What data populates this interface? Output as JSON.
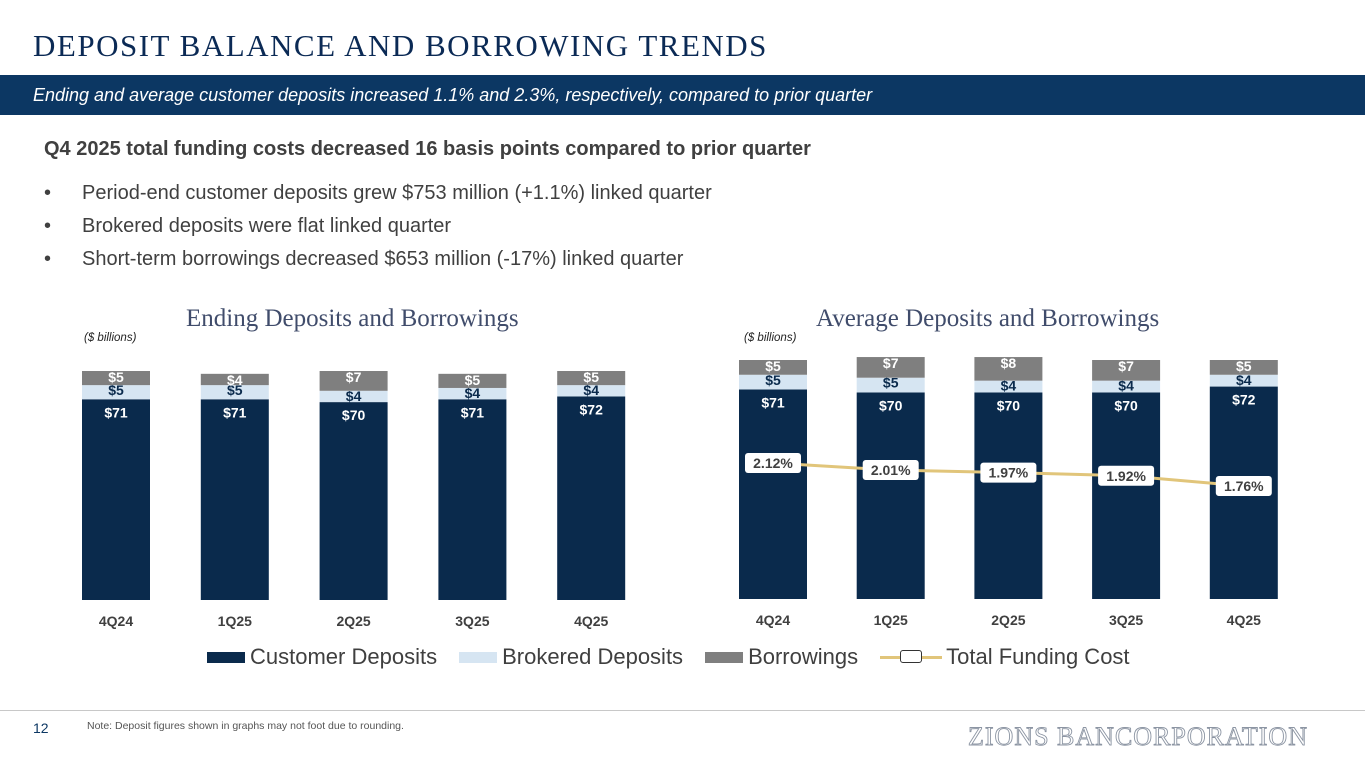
{
  "title": "DEPOSIT BALANCE AND BORROWING TRENDS",
  "banner": "Ending and average customer deposits increased 1.1% and 2.3%, respectively, compared to prior quarter",
  "headline": "Q4 2025 total funding costs decreased 16 basis points compared to prior quarter",
  "bullets": [
    "Period-end customer deposits grew $753 million (+1.1%) linked quarter",
    "Brokered deposits were flat linked quarter",
    "Short-term borrowings decreased $653 million (-17%) linked quarter"
  ],
  "bullet_glyph": "•",
  "colors": {
    "customer": "#0a2a4c",
    "brokered": "#d6e5f2",
    "borrowings": "#7f7f7f",
    "funding_line": "#e1c57a"
  },
  "chart_data": [
    {
      "type": "bar",
      "stacked": true,
      "title": "Ending Deposits and Borrowings",
      "units": "($ billions)",
      "categories": [
        "4Q24",
        "1Q25",
        "2Q25",
        "3Q25",
        "4Q25"
      ],
      "series": [
        {
          "name": "Customer Deposits",
          "values": [
            71,
            71,
            70,
            71,
            72
          ],
          "labels": [
            "$71",
            "$71",
            "$70",
            "$71",
            "$72"
          ]
        },
        {
          "name": "Brokered Deposits",
          "values": [
            5,
            5,
            4,
            4,
            4
          ],
          "labels": [
            "$5",
            "$5",
            "$4",
            "$4",
            "$4"
          ]
        },
        {
          "name": "Borrowings",
          "values": [
            5,
            4,
            7,
            5,
            5
          ],
          "labels": [
            "$5",
            "$4",
            "$7",
            "$5",
            "$5"
          ]
        }
      ],
      "ylim": [
        0,
        81
      ]
    },
    {
      "type": "bar",
      "stacked": true,
      "title": "Average Deposits and Borrowings",
      "units": "($ billions)",
      "categories": [
        "4Q24",
        "1Q25",
        "2Q25",
        "3Q25",
        "4Q25"
      ],
      "series": [
        {
          "name": "Customer Deposits",
          "values": [
            71,
            70,
            70,
            70,
            72
          ],
          "labels": [
            "$71",
            "$70",
            "$70",
            "$70",
            "$72"
          ]
        },
        {
          "name": "Brokered Deposits",
          "values": [
            5,
            5,
            4,
            4,
            4
          ],
          "labels": [
            "$5",
            "$5",
            "$4",
            "$4",
            "$4"
          ]
        },
        {
          "name": "Borrowings",
          "values": [
            5,
            7,
            8,
            7,
            5
          ],
          "labels": [
            "$5",
            "$7",
            "$8",
            "$7",
            "$5"
          ]
        }
      ],
      "line": {
        "name": "Total Funding Cost",
        "values": [
          2.12,
          2.01,
          1.97,
          1.92,
          1.76
        ],
        "labels": [
          "2.12%",
          "2.01%",
          "1.97%",
          "1.92%",
          "1.76%"
        ]
      },
      "ylim": [
        0,
        81
      ]
    }
  ],
  "legend": [
    "Customer Deposits",
    "Brokered Deposits",
    "Borrowings",
    "Total Funding Cost"
  ],
  "footer": {
    "page": "12",
    "note": "Note: Deposit figures shown in graphs may not foot due to rounding.",
    "logo": "ZIONS BANCORPORATION"
  }
}
